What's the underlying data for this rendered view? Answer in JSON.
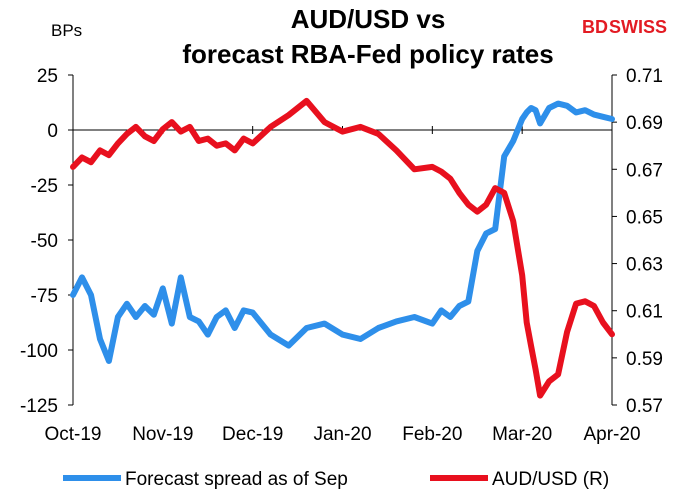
{
  "logo": {
    "text_a": "BD",
    "text_b": "SWISS"
  },
  "chart_data": {
    "type": "line",
    "title": [
      "AUD/USD vs",
      "forecast RBA-Fed policy rates"
    ],
    "y_left_label": "BPs",
    "y_left_ticks": [
      "25",
      "0",
      "-25",
      "-50",
      "-75",
      "-100",
      "-125"
    ],
    "y_left_range": [
      -125,
      25
    ],
    "y_right_ticks": [
      "0.71",
      "0.69",
      "0.67",
      "0.65",
      "0.63",
      "0.61",
      "0.59",
      "0.57"
    ],
    "y_right_range": [
      0.57,
      0.71
    ],
    "x_ticks": [
      "Oct-19",
      "Nov-19",
      "Dec-19",
      "Jan-20",
      "Feb-20",
      "Mar-20",
      "Apr-20"
    ],
    "grid": false,
    "legend_position": "bottom",
    "colors": {
      "spread": "#2e8fea",
      "aud": "#e8101e"
    },
    "series": [
      {
        "name": "Forecast spread as of Sep",
        "axis": "left",
        "x": [
          0,
          0.1,
          0.2,
          0.3,
          0.4,
          0.5,
          0.6,
          0.7,
          0.8,
          0.9,
          1.0,
          1.1,
          1.2,
          1.3,
          1.4,
          1.5,
          1.6,
          1.7,
          1.8,
          1.9,
          2.0,
          2.2,
          2.4,
          2.6,
          2.8,
          3.0,
          3.2,
          3.4,
          3.6,
          3.8,
          4.0,
          4.1,
          4.2,
          4.3,
          4.4,
          4.5,
          4.6,
          4.7,
          4.8,
          4.9,
          5.0,
          5.05,
          5.1,
          5.15,
          5.2,
          5.3,
          5.4,
          5.5,
          5.6,
          5.7,
          5.8,
          5.9,
          6.0
        ],
        "values": [
          -75,
          -67,
          -75,
          -95,
          -105,
          -85,
          -79,
          -85,
          -80,
          -84,
          -72,
          -88,
          -67,
          -85,
          -87,
          -93,
          -85,
          -82,
          -90,
          -82,
          -83,
          -93,
          -98,
          -90,
          -88,
          -93,
          -95,
          -90,
          -87,
          -85,
          -88,
          -82,
          -85,
          -80,
          -78,
          -55,
          -47,
          -45,
          -12,
          -5,
          5,
          8,
          10,
          9,
          3,
          10,
          12,
          11,
          8,
          9,
          7,
          6,
          5
        ]
      },
      {
        "name": "AUD/USD (R)",
        "axis": "right",
        "x": [
          0,
          0.1,
          0.2,
          0.3,
          0.4,
          0.5,
          0.6,
          0.7,
          0.8,
          0.9,
          1.0,
          1.1,
          1.2,
          1.3,
          1.4,
          1.5,
          1.6,
          1.7,
          1.8,
          1.9,
          2.0,
          2.2,
          2.4,
          2.6,
          2.8,
          3.0,
          3.2,
          3.4,
          3.6,
          3.8,
          4.0,
          4.1,
          4.2,
          4.3,
          4.4,
          4.5,
          4.6,
          4.7,
          4.8,
          4.9,
          5.0,
          5.05,
          5.1,
          5.15,
          5.2,
          5.3,
          5.4,
          5.5,
          5.6,
          5.7,
          5.8,
          5.9,
          6.0
        ],
        "values": [
          0.671,
          0.675,
          0.673,
          0.678,
          0.676,
          0.681,
          0.685,
          0.688,
          0.684,
          0.682,
          0.687,
          0.69,
          0.686,
          0.688,
          0.682,
          0.683,
          0.68,
          0.681,
          0.678,
          0.683,
          0.681,
          0.688,
          0.693,
          0.699,
          0.69,
          0.686,
          0.688,
          0.685,
          0.678,
          0.67,
          0.671,
          0.669,
          0.666,
          0.66,
          0.655,
          0.652,
          0.655,
          0.662,
          0.66,
          0.648,
          0.625,
          0.605,
          0.595,
          0.585,
          0.574,
          0.58,
          0.583,
          0.601,
          0.613,
          0.614,
          0.612,
          0.605,
          0.6
        ]
      }
    ]
  }
}
